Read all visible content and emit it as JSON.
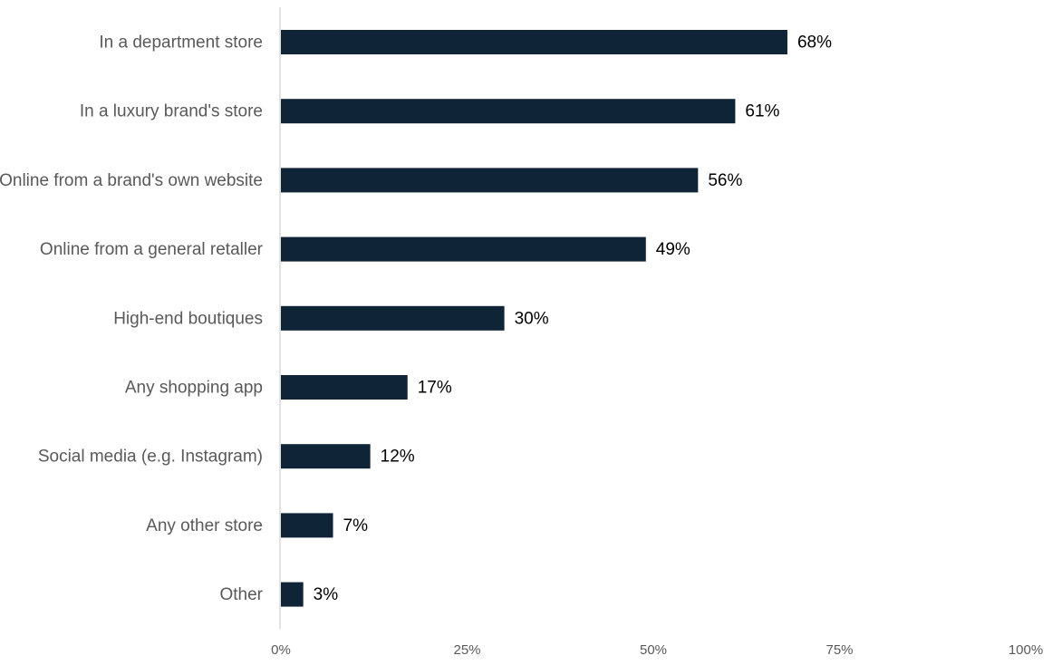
{
  "chart_data": {
    "type": "bar",
    "orientation": "horizontal",
    "categories": [
      "In a department store",
      "In a luxury brand's store",
      "Online from a brand's own website",
      "Online from a general retaller",
      "High-end boutiques",
      "Any shopping app",
      "Social media (e.g. Instagram)",
      "Any other store",
      "Other"
    ],
    "values": [
      68,
      61,
      56,
      49,
      30,
      17,
      12,
      7,
      3
    ],
    "data_labels": [
      "68%",
      "61%",
      "56%",
      "49%",
      "30%",
      "17%",
      "12%",
      "7%",
      "3%"
    ],
    "xlim": [
      0,
      100
    ],
    "x_ticks": [
      0,
      25,
      50,
      75,
      100
    ],
    "x_tick_labels": [
      "0%",
      "25%",
      "50%",
      "75%",
      "100%"
    ],
    "grid": false,
    "legend": "none",
    "colors": {
      "bar": "#0f2537",
      "axis": "#d9d9d9"
    }
  }
}
